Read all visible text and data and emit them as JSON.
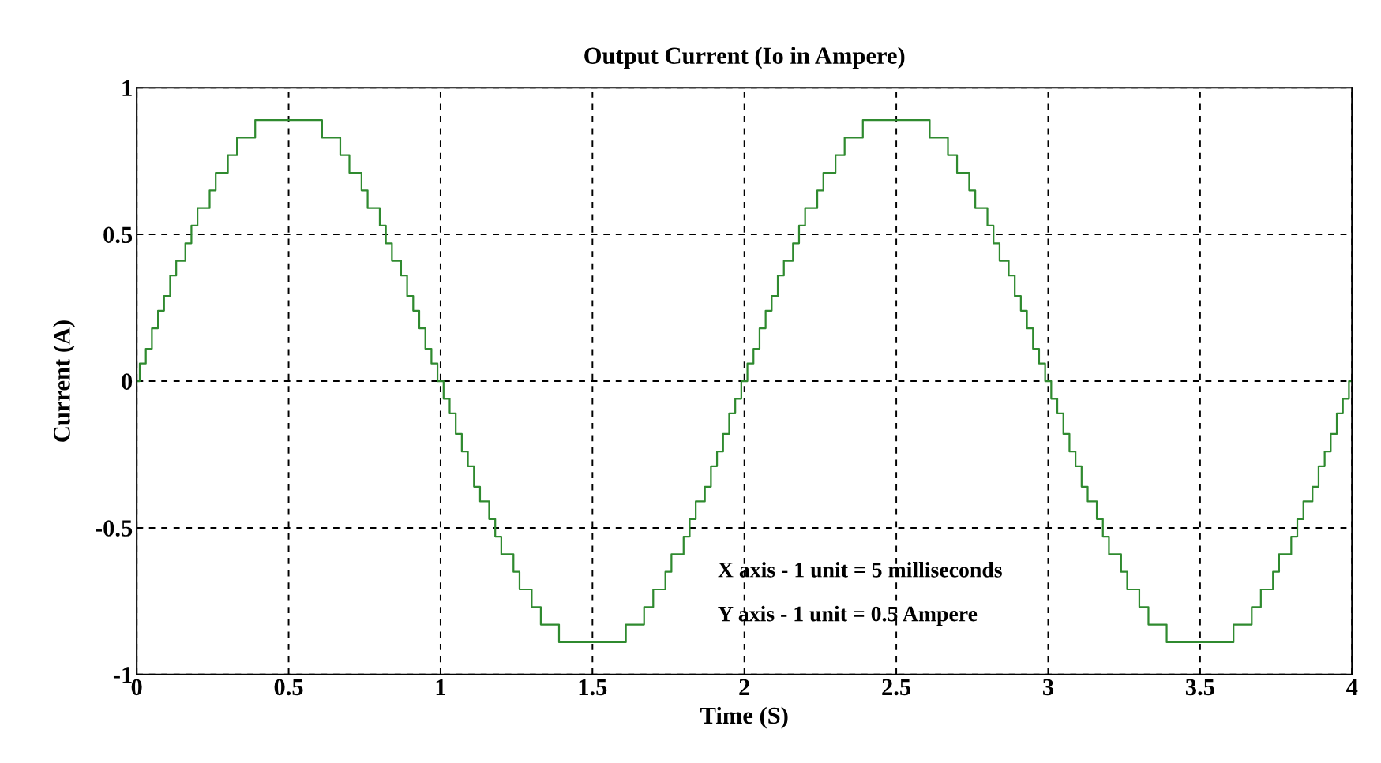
{
  "chart_data": {
    "type": "step",
    "title": "Output Current (Io in Ampere)",
    "xlabel": "Time (S)",
    "ylabel": "Current (A)",
    "annotations": [
      "X axis - 1 unit = 5 milliseconds",
      "Y axis - 1 unit = 0.5 Ampere"
    ],
    "xlim": [
      0,
      4
    ],
    "xticks": [
      0,
      0.5,
      1,
      1.5,
      2,
      2.5,
      3,
      3.5,
      4
    ],
    "ylim": [
      -1,
      1
    ],
    "yticks": [
      -1,
      -0.5,
      0,
      0.5,
      1
    ],
    "grid": true,
    "line_style": "solid",
    "marker": "none",
    "series": [
      {
        "color": "#2f8a2f",
        "x": [
          0,
          0.01,
          0.03,
          0.05,
          0.07,
          0.09,
          0.11,
          0.13,
          0.16,
          0.18,
          0.2,
          0.24,
          0.26,
          0.3,
          0.33,
          0.39,
          0.61,
          0.67,
          0.7,
          0.74,
          0.76,
          0.8,
          0.82,
          0.84,
          0.87,
          0.89,
          0.91,
          0.93,
          0.95,
          0.97,
          0.99,
          1.01,
          1.03,
          1.05,
          1.07,
          1.09,
          1.11,
          1.13,
          1.16,
          1.18,
          1.2,
          1.24,
          1.26,
          1.3,
          1.33,
          1.39,
          1.61,
          1.67,
          1.7,
          1.74,
          1.76,
          1.8,
          1.82,
          1.84,
          1.87,
          1.89,
          1.91,
          1.93,
          1.95,
          1.97,
          1.99,
          2.01,
          2.03,
          2.05,
          2.07,
          2.09,
          2.11,
          2.13,
          2.16,
          2.18,
          2.2,
          2.24,
          2.26,
          2.3,
          2.33,
          2.39,
          2.61,
          2.67,
          2.7,
          2.74,
          2.76,
          2.8,
          2.82,
          2.84,
          2.87,
          2.89,
          2.91,
          2.93,
          2.95,
          2.97,
          2.99,
          3.01,
          3.03,
          3.05,
          3.07,
          3.09,
          3.11,
          3.13,
          3.16,
          3.18,
          3.2,
          3.24,
          3.26,
          3.3,
          3.33,
          3.39,
          3.61,
          3.67,
          3.7,
          3.74,
          3.76,
          3.8,
          3.82,
          3.84,
          3.87,
          3.89,
          3.91,
          3.93,
          3.95,
          3.97,
          3.99,
          4
        ],
        "values": [
          0,
          0.06,
          0.11,
          0.18,
          0.24,
          0.29,
          0.36,
          0.41,
          0.47,
          0.53,
          0.59,
          0.65,
          0.71,
          0.77,
          0.83,
          0.89,
          0.83,
          0.77,
          0.71,
          0.65,
          0.59,
          0.53,
          0.47,
          0.41,
          0.36,
          0.29,
          0.24,
          0.18,
          0.11,
          0.06,
          0,
          -0.06,
          -0.11,
          -0.18,
          -0.24,
          -0.29,
          -0.36,
          -0.41,
          -0.47,
          -0.53,
          -0.59,
          -0.65,
          -0.71,
          -0.77,
          -0.83,
          -0.89,
          -0.83,
          -0.77,
          -0.71,
          -0.65,
          -0.59,
          -0.53,
          -0.47,
          -0.41,
          -0.36,
          -0.29,
          -0.24,
          -0.18,
          -0.11,
          -0.06,
          0,
          0.06,
          0.11,
          0.18,
          0.24,
          0.29,
          0.36,
          0.41,
          0.47,
          0.53,
          0.59,
          0.65,
          0.71,
          0.77,
          0.83,
          0.89,
          0.83,
          0.77,
          0.71,
          0.65,
          0.59,
          0.53,
          0.47,
          0.41,
          0.36,
          0.29,
          0.24,
          0.18,
          0.11,
          0.06,
          0,
          -0.06,
          -0.11,
          -0.18,
          -0.24,
          -0.29,
          -0.36,
          -0.41,
          -0.47,
          -0.53,
          -0.59,
          -0.65,
          -0.71,
          -0.77,
          -0.83,
          -0.89,
          -0.83,
          -0.77,
          -0.71,
          -0.65,
          -0.59,
          -0.53,
          -0.47,
          -0.41,
          -0.36,
          -0.29,
          -0.24,
          -0.18,
          -0.11,
          -0.06,
          0,
          0
        ]
      }
    ]
  }
}
